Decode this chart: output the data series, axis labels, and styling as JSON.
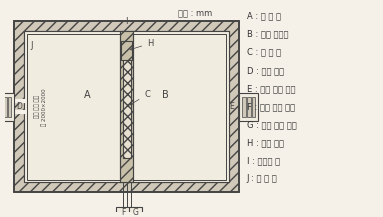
{
  "title": "단위 : mm",
  "legend": [
    "A : 저 온 실",
    "B : 항온 항습실",
    "C : 시 험 체",
    "D : 저온 장치",
    "E : 항온 항습 장치",
    "F : 온도 측정 기기",
    "G : 습도 측정 기기",
    "H : 부착 패널",
    "I : 칸막이 벽",
    "J : 단 열 벽"
  ],
  "bg_color": "#f5f0e8",
  "line_color": "#444444",
  "hatch_color": "#888888",
  "annotation_color": "#333333"
}
